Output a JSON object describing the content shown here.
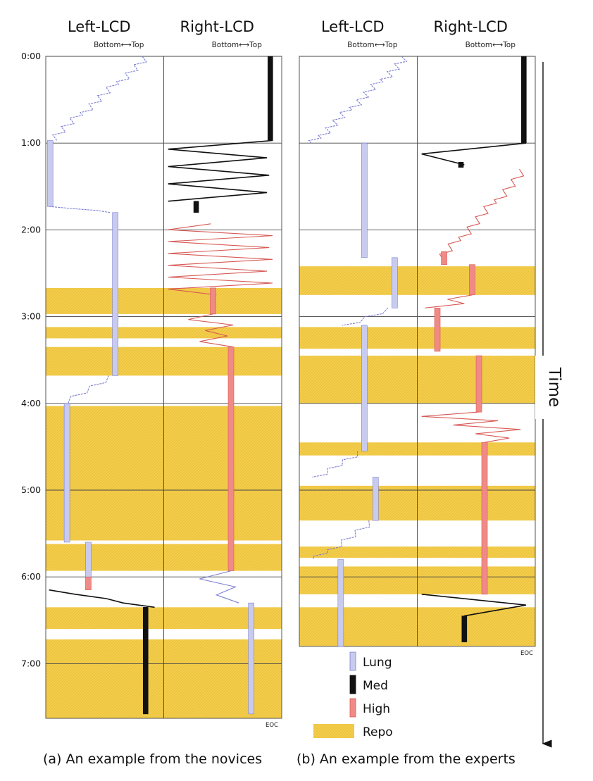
{
  "colors": {
    "lung": "#c9cbee",
    "lung_edge": "#7c7fd0",
    "med": "#111111",
    "high": "#f08a86",
    "high_edge": "#d65a55",
    "repo": "#f3cd4c"
  },
  "chart_data": [
    {
      "type": "timeline",
      "panel": "a",
      "caption": "(a) An example from the novices",
      "columns": [
        {
          "title": "Left-LCD",
          "sub": "Bottom⟷Top"
        },
        {
          "title": "Right-LCD",
          "sub": "Bottom⟷Top"
        }
      ],
      "y_ticks": [
        "0:00",
        "1:00",
        "2:00",
        "3:00",
        "4:00",
        "5:00",
        "6:00",
        "7:00"
      ],
      "y_range_minutes": [
        0,
        7.63
      ],
      "end_label": "EOC",
      "repo_intervals": [
        [
          2.67,
          2.97
        ],
        [
          3.12,
          3.25
        ],
        [
          3.35,
          3.68
        ],
        [
          4.03,
          5.58
        ],
        [
          5.62,
          5.93
        ],
        [
          6.35,
          6.6
        ],
        [
          6.72,
          7.63
        ]
      ],
      "left_segments": [
        {
          "cat": "Lung",
          "mode": "scan",
          "t": [
            0,
            0.97
          ],
          "x": [
            0.9,
            0.02
          ],
          "n": 30
        },
        {
          "cat": "Lung",
          "mode": "hold",
          "t": [
            0.97,
            1.73
          ],
          "x": 0.02
        },
        {
          "cat": "Lung",
          "mode": "scan",
          "t": [
            1.73,
            1.8
          ],
          "x": [
            0.02,
            0.6
          ],
          "n": 3
        },
        {
          "cat": "Lung",
          "mode": "hold",
          "t": [
            1.8,
            3.68
          ],
          "x": 0.6
        },
        {
          "cat": "Lung",
          "mode": "scan",
          "t": [
            3.68,
            4.0
          ],
          "x": [
            0.6,
            0.12
          ],
          "n": 8
        },
        {
          "cat": "Lung",
          "mode": "hold",
          "t": [
            4.0,
            5.6
          ],
          "x": 0.17
        },
        {
          "cat": "Lung",
          "mode": "hold",
          "t": [
            5.6,
            6.0
          ],
          "x": 0.36
        },
        {
          "cat": "High",
          "mode": "hold",
          "t": [
            6.0,
            6.15
          ],
          "x": 0.36
        },
        {
          "cat": "Med",
          "mode": "scan",
          "t": [
            6.15,
            6.35
          ],
          "x": [
            0.02,
            0.95
          ],
          "n": 4
        },
        {
          "cat": "Med",
          "mode": "hold",
          "t": [
            6.35,
            7.58
          ],
          "x": 0.87
        }
      ],
      "right_segments": [
        {
          "cat": "Med",
          "mode": "hold",
          "t": [
            0,
            0.97
          ],
          "x": 0.93
        },
        {
          "cat": "Med",
          "mode": "zigzag",
          "t": [
            0.97,
            1.67
          ],
          "xs": [
            0.95,
            0.02,
            0.9,
            0.02,
            0.92,
            0.02,
            0.9,
            0.02
          ]
        },
        {
          "cat": "Med",
          "mode": "hold",
          "t": [
            1.67,
            1.8
          ],
          "x": 0.27
        },
        {
          "cat": "High",
          "mode": "zigzag",
          "t": [
            1.93,
            2.75
          ],
          "xs": [
            0.4,
            0.02,
            0.95,
            0.02,
            0.92,
            0.02,
            0.95,
            0.02,
            0.9,
            0.02,
            0.95,
            0.02,
            0.45
          ]
        },
        {
          "cat": "High",
          "mode": "hold",
          "t": [
            2.67,
            2.97
          ],
          "x": 0.42
        },
        {
          "cat": "High",
          "mode": "zigzag",
          "t": [
            2.97,
            3.35
          ],
          "xs": [
            0.42,
            0.2,
            0.6,
            0.35,
            0.55,
            0.3,
            0.6
          ]
        },
        {
          "cat": "High",
          "mode": "hold",
          "t": [
            3.35,
            5.93
          ],
          "x": 0.58
        },
        {
          "cat": "Lung",
          "mode": "zigzag",
          "t": [
            5.93,
            6.3
          ],
          "xs": [
            0.58,
            0.3,
            0.62,
            0.45,
            0.65
          ]
        },
        {
          "cat": "Lung",
          "mode": "hold",
          "t": [
            6.3,
            7.58
          ],
          "x": 0.76
        }
      ]
    },
    {
      "type": "timeline",
      "panel": "b",
      "caption": "(b) An example from the experts",
      "columns": [
        {
          "title": "Left-LCD",
          "sub": "Bottom⟷Top"
        },
        {
          "title": "Right-LCD",
          "sub": "Bottom⟷Top"
        }
      ],
      "y_ticks": [
        "0:00",
        "1:00",
        "2:00",
        "3:00",
        "4:00",
        "5:00",
        "6:00",
        "7:00"
      ],
      "y_range_minutes": [
        0,
        6.8
      ],
      "end_label": "EOC",
      "repo_intervals": [
        [
          2.42,
          2.75
        ],
        [
          3.12,
          3.37
        ],
        [
          3.45,
          4.0
        ],
        [
          4.45,
          4.6
        ],
        [
          4.95,
          5.35
        ],
        [
          5.65,
          5.78
        ],
        [
          5.88,
          6.2
        ],
        [
          6.35,
          6.8
        ]
      ],
      "left_segments": [
        {
          "cat": "Lung",
          "mode": "scan",
          "t": [
            0,
            1.0
          ],
          "x": [
            0.95,
            0.1
          ],
          "n": 34
        },
        {
          "cat": "Lung",
          "mode": "hold",
          "t": [
            1.0,
            2.32
          ],
          "x": 0.56
        },
        {
          "cat": "Lung",
          "mode": "hold",
          "t": [
            2.32,
            2.9
          ],
          "x": 0.83
        },
        {
          "cat": "Lung",
          "mode": "scan",
          "t": [
            2.9,
            3.1
          ],
          "x": [
            0.83,
            0.4
          ],
          "n": 6
        },
        {
          "cat": "Lung",
          "mode": "hold",
          "t": [
            3.1,
            4.55
          ],
          "x": 0.56
        },
        {
          "cat": "Lung",
          "mode": "scan",
          "t": [
            4.55,
            4.85
          ],
          "x": [
            0.56,
            0.12
          ],
          "n": 9
        },
        {
          "cat": "Lung",
          "mode": "hold",
          "t": [
            4.85,
            5.35
          ],
          "x": 0.66
        },
        {
          "cat": "Lung",
          "mode": "scan",
          "t": [
            5.35,
            5.8
          ],
          "x": [
            0.66,
            0.12
          ],
          "n": 12
        },
        {
          "cat": "Lung",
          "mode": "hold",
          "t": [
            5.8,
            6.8
          ],
          "x": 0.35
        }
      ],
      "right_segments": [
        {
          "cat": "Med",
          "mode": "hold",
          "t": [
            0,
            1.0
          ],
          "x": 0.93
        },
        {
          "cat": "Med",
          "mode": "zigzag",
          "t": [
            1.0,
            1.25
          ],
          "xs": [
            0.95,
            0.02,
            0.4
          ]
        },
        {
          "cat": "Med",
          "mode": "hold",
          "t": [
            1.22,
            1.28
          ],
          "x": 0.37
        },
        {
          "cat": "High",
          "mode": "scan",
          "t": [
            1.3,
            2.32
          ],
          "x": [
            0.95,
            0.2
          ],
          "n": 26
        },
        {
          "cat": "High",
          "mode": "hold",
          "t": [
            2.25,
            2.4
          ],
          "x": 0.22
        },
        {
          "cat": "High",
          "mode": "hold",
          "t": [
            2.4,
            2.75
          ],
          "x": 0.47
        },
        {
          "cat": "High",
          "mode": "zigzag",
          "t": [
            2.75,
            2.9
          ],
          "xs": [
            0.47,
            0.25,
            0.4,
            0.05
          ]
        },
        {
          "cat": "High",
          "mode": "hold",
          "t": [
            2.9,
            3.4
          ],
          "x": 0.16
        },
        {
          "cat": "High",
          "mode": "hold",
          "t": [
            3.45,
            4.1
          ],
          "x": 0.53
        },
        {
          "cat": "High",
          "mode": "zigzag",
          "t": [
            4.1,
            4.45
          ],
          "xs": [
            0.53,
            0.02,
            0.7,
            0.3,
            0.9,
            0.5,
            0.8,
            0.58
          ]
        },
        {
          "cat": "High",
          "mode": "hold",
          "t": [
            4.45,
            6.2
          ],
          "x": 0.58
        },
        {
          "cat": "Med",
          "mode": "zigzag",
          "t": [
            6.2,
            6.45
          ],
          "xs": [
            0.02,
            0.95,
            0.4
          ]
        },
        {
          "cat": "Med",
          "mode": "hold",
          "t": [
            6.45,
            6.75
          ],
          "x": 0.4
        }
      ]
    }
  ],
  "legend": [
    {
      "cat": "Lung",
      "label": "Lung"
    },
    {
      "cat": "Med",
      "label": "Med"
    },
    {
      "cat": "High",
      "label": "High"
    },
    {
      "cat": "Repo",
      "label": "Repo"
    }
  ],
  "time_axis_label": "Time"
}
